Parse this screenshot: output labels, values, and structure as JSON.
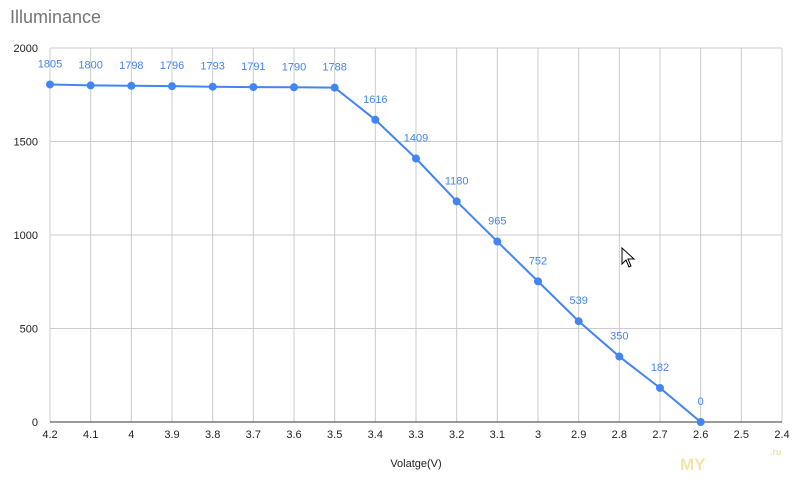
{
  "colors": {
    "series": "#4285f4",
    "grid": "#cccccc",
    "title": "#757575"
  },
  "watermark": {
    "text": "MY",
    "suffix": ".ru"
  },
  "chart_data": {
    "type": "line",
    "title": "Illuminance",
    "xlabel": "Volatge(V)",
    "ylabel": "",
    "x_tick_labels": [
      "4.2",
      "4.1",
      "4",
      "3.9",
      "3.8",
      "3.7",
      "3.6",
      "3.5",
      "3.4",
      "3.3",
      "3.2",
      "3.1",
      "3",
      "2.9",
      "2.8",
      "2.7",
      "2.6",
      "2.5",
      "2.4"
    ],
    "y_tick_labels": [
      "0",
      "500",
      "1000",
      "1500",
      "2000"
    ],
    "ylim": [
      0,
      2000
    ],
    "grid": true,
    "legend": "none",
    "series": [
      {
        "x": [
          "4.2",
          "4.1",
          "4",
          "3.9",
          "3.8",
          "3.7",
          "3.6",
          "3.5",
          "3.4",
          "3.3",
          "3.2",
          "3.1",
          "3",
          "2.9",
          "2.8",
          "2.7",
          "2.6"
        ],
        "values": [
          1805,
          1800,
          1798,
          1796,
          1793,
          1791,
          1790,
          1788,
          1616,
          1409,
          1180,
          965,
          752,
          539,
          350,
          182,
          0
        ]
      }
    ]
  }
}
